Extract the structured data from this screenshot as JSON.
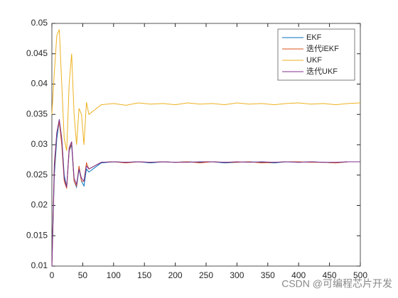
{
  "chart_data": {
    "type": "line",
    "x": [
      0,
      4,
      8,
      12,
      16,
      20,
      24,
      28,
      32,
      36,
      40,
      44,
      48,
      52,
      56,
      60,
      80,
      100,
      120,
      140,
      160,
      180,
      200,
      220,
      240,
      260,
      280,
      300,
      320,
      340,
      360,
      380,
      400,
      420,
      440,
      460,
      480,
      500
    ],
    "series": [
      {
        "name": "EKF",
        "color": "#0072BD",
        "values": [
          0.01,
          0.025,
          0.031,
          0.034,
          0.031,
          0.025,
          0.023,
          0.029,
          0.03,
          0.024,
          0.023,
          0.026,
          0.024,
          0.0232,
          0.026,
          0.0255,
          0.027,
          0.0272,
          0.0271,
          0.0272,
          0.027,
          0.0272,
          0.0271,
          0.0272,
          0.0271,
          0.0272,
          0.027,
          0.0271,
          0.0272,
          0.0271,
          0.027,
          0.0272,
          0.0271,
          0.0272,
          0.0271,
          0.027,
          0.0272,
          0.0272
        ]
      },
      {
        "name": "迭代iEKF",
        "color": "#D95319",
        "values": [
          0.01,
          0.026,
          0.032,
          0.0338,
          0.03,
          0.024,
          0.0228,
          0.029,
          0.0305,
          0.024,
          0.0232,
          0.0265,
          0.024,
          0.024,
          0.027,
          0.026,
          0.0271,
          0.0272,
          0.027,
          0.0272,
          0.0271,
          0.0272,
          0.0271,
          0.0272,
          0.027,
          0.0272,
          0.0271,
          0.0271,
          0.0272,
          0.027,
          0.0271,
          0.0272,
          0.0272,
          0.0271,
          0.0271,
          0.027,
          0.0272,
          0.0272
        ]
      },
      {
        "name": "UKF",
        "color": "#EDB120",
        "values": [
          0.035,
          0.042,
          0.048,
          0.049,
          0.04,
          0.031,
          0.029,
          0.04,
          0.045,
          0.035,
          0.03,
          0.036,
          0.035,
          0.03,
          0.037,
          0.035,
          0.0366,
          0.0368,
          0.0365,
          0.0369,
          0.0367,
          0.0368,
          0.0366,
          0.0369,
          0.0367,
          0.0368,
          0.0366,
          0.0369,
          0.0367,
          0.0368,
          0.0366,
          0.0368,
          0.0369,
          0.0367,
          0.0368,
          0.0366,
          0.0368,
          0.0369
        ]
      },
      {
        "name": "迭代UKF",
        "color": "#7E2F8E",
        "values": [
          0.01,
          0.027,
          0.032,
          0.0342,
          0.031,
          0.0245,
          0.023,
          0.0295,
          0.0305,
          0.0245,
          0.0235,
          0.026,
          0.0245,
          0.024,
          0.0265,
          0.026,
          0.0271,
          0.0272,
          0.0271,
          0.0272,
          0.0271,
          0.0272,
          0.0271,
          0.0271,
          0.0272,
          0.0272,
          0.0271,
          0.0272,
          0.0271,
          0.0272,
          0.0271,
          0.0272,
          0.0271,
          0.0272,
          0.0271,
          0.0271,
          0.0272,
          0.0272
        ]
      }
    ],
    "xlim": [
      0,
      500
    ],
    "xticks": [
      0,
      50,
      100,
      150,
      200,
      250,
      300,
      350,
      400,
      450,
      500
    ],
    "ylim": [
      0.01,
      0.05
    ],
    "yticks": [
      0.01,
      0.015,
      0.02,
      0.025,
      0.03,
      0.035,
      0.04,
      0.045,
      0.05
    ],
    "legend": "top-right",
    "grid": false
  },
  "watermark": "CSDN @可编程芯片开发"
}
